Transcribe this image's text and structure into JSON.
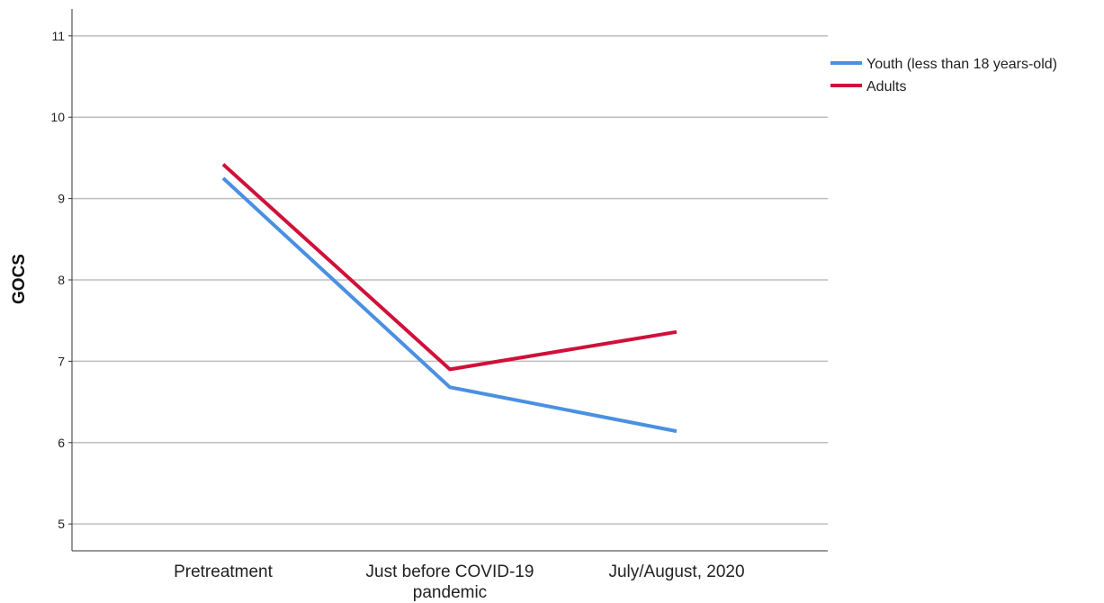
{
  "chart_data": {
    "type": "line",
    "ylabel": "GOCS",
    "xlabel": "",
    "title": "",
    "categories": [
      [
        "Pretreatment"
      ],
      [
        "Just before COVID-19",
        "pandemic"
      ],
      [
        "July/August, 2020"
      ]
    ],
    "yticks": [
      "5",
      "6",
      "7",
      "8",
      "9",
      "10",
      "11"
    ],
    "ylim": [
      4.67,
      11.33
    ],
    "grid": true,
    "legend_position": "top-right",
    "series": [
      {
        "name": "Youth (less than 18 years-old)",
        "color": "#4a90e2",
        "values": [
          9.25,
          6.68,
          6.14
        ]
      },
      {
        "name": "Adults",
        "color": "#d0103a",
        "values": [
          9.42,
          6.9,
          7.36
        ]
      }
    ]
  }
}
